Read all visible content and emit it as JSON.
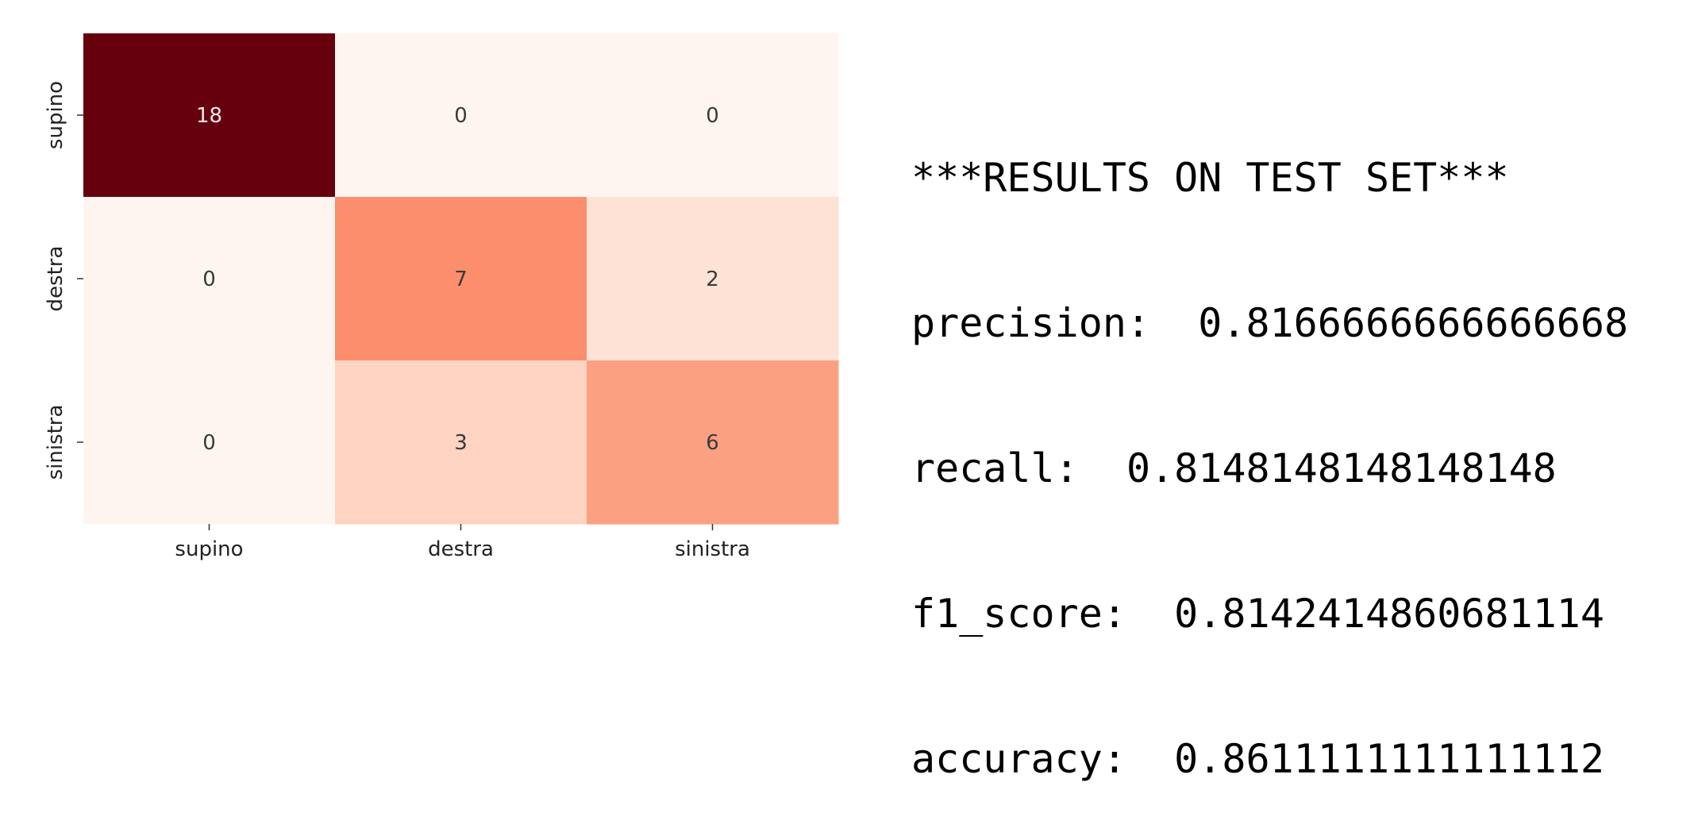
{
  "chart_data": {
    "type": "heatmap",
    "x_categories": [
      "supino",
      "destra",
      "sinistra"
    ],
    "y_categories": [
      "supino",
      "destra",
      "sinistra"
    ],
    "values": [
      [
        18,
        0,
        0
      ],
      [
        0,
        7,
        2
      ],
      [
        0,
        3,
        6
      ]
    ],
    "colormap": "Reds",
    "colorbar": false,
    "annotations": true,
    "color_low": "#fff5f0",
    "color_high": "#67000d"
  },
  "results": {
    "header": "***RESULTS ON TEST SET***",
    "precision_label": "precision:",
    "precision_value": "0.8166666666666668",
    "recall_label": "recall:",
    "recall_value": "0.8148148148148148",
    "f1_label": "f1_score:",
    "f1_value": "0.8142414860681114",
    "accuracy_label": "accuracy:",
    "accuracy_value": "0.8611111111111112"
  }
}
